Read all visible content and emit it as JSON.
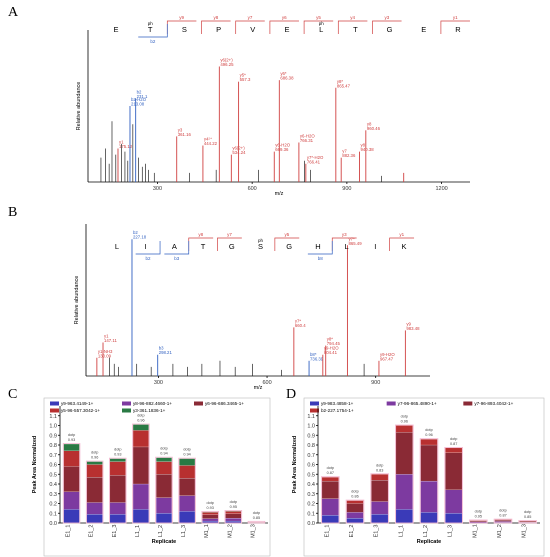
{
  "panels": [
    {
      "label": "A",
      "ylabel": "Relative abundance",
      "xlabel": "m/z"
    },
    {
      "label": "B",
      "ylabel": "Relative abundance",
      "xlabel": "m/z"
    },
    {
      "label": "C",
      "ylabel": "Peak Area Normalized",
      "xlabel": "Replicate"
    },
    {
      "label": "D",
      "ylabel": "Peak Area Normalized",
      "xlabel": "Replicate"
    }
  ],
  "chart_data": [
    {
      "panel": "A",
      "type": "bar",
      "xlabel": "m/z",
      "ylabel": "Relative abundance",
      "xlim": [
        80,
        1290
      ],
      "xticks": [
        300,
        600,
        900,
        1200
      ],
      "ylim": [
        0,
        100
      ],
      "sequence": [
        "E",
        "T",
        "S",
        "P",
        "V",
        "E",
        "L",
        "T",
        "G",
        "E",
        "R"
      ],
      "seq_mods": [
        {
          "index": 1,
          "text": "ph"
        },
        {
          "index": 6,
          "text": "ph"
        }
      ],
      "y_ions": [
        "y9",
        "y8",
        "y7",
        "y6",
        "y5",
        "y4",
        "y3",
        "y1"
      ],
      "b_ions": [
        "b2"
      ],
      "peaks": [
        {
          "x": 121,
          "y": 16,
          "c": "k"
        },
        {
          "x": 135,
          "y": 22,
          "c": "k"
        },
        {
          "x": 147,
          "y": 12,
          "c": "k"
        },
        {
          "x": 156,
          "y": 40,
          "c": "k"
        },
        {
          "x": 168,
          "y": 18,
          "c": "k"
        },
        {
          "x": 175,
          "y": 22,
          "c": "r",
          "label": "y1",
          "mz": "175.12"
        },
        {
          "x": 186,
          "y": 25,
          "c": "k"
        },
        {
          "x": 197,
          "y": 20,
          "c": "k"
        },
        {
          "x": 206,
          "y": 14,
          "c": "k"
        },
        {
          "x": 213,
          "y": 50,
          "c": "b",
          "label": "b2-H2O",
          "mz": "213.08"
        },
        {
          "x": 222,
          "y": 38,
          "c": "k"
        },
        {
          "x": 231,
          "y": 55,
          "c": "b",
          "label": "b2",
          "mz": "231.1"
        },
        {
          "x": 240,
          "y": 16,
          "c": "k"
        },
        {
          "x": 252,
          "y": 10,
          "c": "k"
        },
        {
          "x": 262,
          "y": 12,
          "c": "k"
        },
        {
          "x": 272,
          "y": 8,
          "c": "k"
        },
        {
          "x": 290,
          "y": 6,
          "c": "k"
        },
        {
          "x": 361,
          "y": 30,
          "c": "r",
          "label": "y3",
          "mz": "361.16"
        },
        {
          "x": 402,
          "y": 6,
          "c": "k"
        },
        {
          "x": 444,
          "y": 24,
          "c": "r",
          "label": "y4²⁺",
          "mz": "444.22"
        },
        {
          "x": 486,
          "y": 8,
          "c": "k"
        },
        {
          "x": 496,
          "y": 76,
          "c": "r",
          "label": "y6(2+)",
          "mz": "496.25"
        },
        {
          "x": 534,
          "y": 18,
          "c": "r",
          "label": "y6(2+)",
          "mz": "534.24"
        },
        {
          "x": 557,
          "y": 66,
          "c": "r",
          "label": "y5*",
          "mz": "557.3"
        },
        {
          "x": 620,
          "y": 8,
          "c": "k"
        },
        {
          "x": 670,
          "y": 20,
          "c": "r",
          "label": "y6-H2O",
          "mz": "669.36"
        },
        {
          "x": 686,
          "y": 67,
          "c": "r",
          "label": "y6*",
          "mz": "686.38"
        },
        {
          "x": 748,
          "y": 26,
          "c": "r",
          "label": "y6-H2O",
          "mz": "766.31"
        },
        {
          "x": 766,
          "y": 14,
          "c": "k"
        },
        {
          "x": 770,
          "y": 12,
          "c": "r",
          "label": "y7*-H2O",
          "mz": "766.41"
        },
        {
          "x": 785,
          "y": 8,
          "c": "k"
        },
        {
          "x": 865,
          "y": 62,
          "c": "r",
          "label": "y8*",
          "mz": "865.47"
        },
        {
          "x": 882,
          "y": 16,
          "c": "r",
          "label": "y7",
          "mz": "882.36"
        },
        {
          "x": 940,
          "y": 20,
          "c": "r",
          "label": "y8",
          "mz": "940.38"
        },
        {
          "x": 960,
          "y": 34,
          "c": "r",
          "label": "y8",
          "mz": "960.46"
        },
        {
          "x": 1010,
          "y": 4,
          "c": "k"
        },
        {
          "x": 1080,
          "y": 6,
          "c": "r"
        }
      ]
    },
    {
      "panel": "B",
      "type": "bar",
      "xlabel": "m/z",
      "ylabel": "Relative abundance",
      "xlim": [
        100,
        1050
      ],
      "xticks": [
        300,
        600,
        900
      ],
      "ylim": [
        0,
        100
      ],
      "sequence": [
        "L",
        "I",
        "A",
        "T",
        "G",
        "S",
        "G",
        "H",
        "L",
        "I",
        "K"
      ],
      "seq_mods": [
        {
          "index": 5,
          "text": "ph"
        }
      ],
      "y_ions": [
        "y8",
        "y7",
        "y5",
        "y3",
        "y1"
      ],
      "b_ions": [
        "b2",
        "b3",
        "b8"
      ],
      "peaks": [
        {
          "x": 130,
          "y": 12,
          "c": "r",
          "label": "y1-NH3",
          "mz": "130.09"
        },
        {
          "x": 147,
          "y": 22,
          "c": "r",
          "label": "y1",
          "mz": "147.11"
        },
        {
          "x": 165,
          "y": 12,
          "c": "k"
        },
        {
          "x": 178,
          "y": 8,
          "c": "k"
        },
        {
          "x": 190,
          "y": 6,
          "c": "k"
        },
        {
          "x": 227,
          "y": 90,
          "c": "b",
          "label": "b2",
          "mz": "227.18"
        },
        {
          "x": 240,
          "y": 8,
          "c": "k"
        },
        {
          "x": 280,
          "y": 6,
          "c": "k"
        },
        {
          "x": 298,
          "y": 14,
          "c": "b",
          "label": "b3",
          "mz": "298.21"
        },
        {
          "x": 340,
          "y": 8,
          "c": "k"
        },
        {
          "x": 380,
          "y": 6,
          "c": "k"
        },
        {
          "x": 420,
          "y": 8,
          "c": "k"
        },
        {
          "x": 470,
          "y": 10,
          "c": "k"
        },
        {
          "x": 512,
          "y": 6,
          "c": "k"
        },
        {
          "x": 560,
          "y": 8,
          "c": "k"
        },
        {
          "x": 640,
          "y": 4,
          "c": "k"
        },
        {
          "x": 674,
          "y": 32,
          "c": "r",
          "label": "y7*",
          "mz": "660.4"
        },
        {
          "x": 716,
          "y": 10,
          "c": "b",
          "label": "b8*",
          "mz": "736.39"
        },
        {
          "x": 754,
          "y": 14,
          "c": "r",
          "label": "y9-H2O",
          "mz": "804.41"
        },
        {
          "x": 762,
          "y": 20,
          "c": "r",
          "label": "y8*",
          "mz": "794.45"
        },
        {
          "x": 822,
          "y": 86,
          "c": "r",
          "label": "y7*",
          "mz": "865.49"
        },
        {
          "x": 868,
          "y": 8,
          "c": "k"
        },
        {
          "x": 909,
          "y": 10,
          "c": "r",
          "label": "y9-H2O",
          "mz": "967.47"
        },
        {
          "x": 982,
          "y": 30,
          "c": "r",
          "label": "y9",
          "mz": "983.48"
        }
      ]
    },
    {
      "panel": "C",
      "type": "bar",
      "xlabel": "Replicate",
      "ylabel": "Peak Area Normalized",
      "ylim": [
        0,
        1.2
      ],
      "yticks": [
        0,
        0.1,
        0.2,
        0.3,
        0.4,
        0.5,
        0.6,
        0.7,
        0.8,
        0.9,
        1.0,
        1.1
      ],
      "categories": [
        "E1_1",
        "E1_2",
        "E1_3",
        "L1_1",
        "L1_2",
        "L1_3",
        "M1_1",
        "M1_2",
        "M1_3"
      ],
      "series": [
        {
          "name": "y9-963.4149-1+",
          "color": "#3a3ab8",
          "values": [
            0.14,
            0.09,
            0.09,
            0.14,
            0.1,
            0.12,
            0.02,
            0.02,
            0.002
          ]
        },
        {
          "name": "y8-96-882.4660-1+",
          "color": "#7d3aa0",
          "values": [
            0.18,
            0.12,
            0.12,
            0.26,
            0.16,
            0.16,
            0.025,
            0.03,
            0.003
          ]
        },
        {
          "name": "y6-96-686.3465-1+",
          "color": "#8a2a35",
          "values": [
            0.26,
            0.26,
            0.28,
            0.38,
            0.24,
            0.18,
            0.04,
            0.045,
            0.004
          ]
        },
        {
          "name": "y5-96-557.3042-1+",
          "color": "#b83030",
          "values": [
            0.16,
            0.13,
            0.14,
            0.17,
            0.13,
            0.13,
            0.025,
            0.025,
            0.002
          ]
        },
        {
          "name": "y3-361.1836-1+",
          "color": "#2a7a44",
          "values": [
            0.07,
            0.03,
            0.03,
            0.06,
            0.04,
            0.07,
            0.004,
            0.004,
            0.001
          ]
        }
      ],
      "annotations": [
        "dotp 0.93",
        "dotp 0.96",
        "dotp 0.93",
        "dotp 0.96",
        "dotp 0.94",
        "dotp 0.94",
        "dotp 0.93",
        "dotp 0.95",
        "dotp 0.85"
      ]
    },
    {
      "panel": "D",
      "type": "bar",
      "xlabel": "Replicate",
      "ylabel": "Peak Area Normalized",
      "ylim": [
        0,
        1.2
      ],
      "yticks": [
        0,
        0.1,
        0.2,
        0.3,
        0.4,
        0.5,
        0.6,
        0.7,
        0.8,
        0.9,
        1.0,
        1.1
      ],
      "categories": [
        "E1_1",
        "E1_2",
        "E1_3",
        "L1_1",
        "L1_2",
        "L1_3",
        "M1_1",
        "M1_2",
        "M1_3"
      ],
      "series": [
        {
          "name": "y9-983.4858-1+",
          "color": "#3a3ab8",
          "values": [
            0.08,
            0.05,
            0.09,
            0.14,
            0.11,
            0.1,
            0.004,
            0.006,
            0.003
          ]
        },
        {
          "name": "y7-96-865.4890-1+",
          "color": "#7d3aa0",
          "values": [
            0.17,
            0.06,
            0.13,
            0.36,
            0.32,
            0.24,
            0.008,
            0.01,
            0.006
          ]
        },
        {
          "name": "y7-96-893.4042-1+",
          "color": "#8a2a35",
          "values": [
            0.18,
            0.09,
            0.22,
            0.43,
            0.37,
            0.38,
            0.01,
            0.014,
            0.008
          ]
        },
        {
          "name": "b2-227.1754-1+",
          "color": "#b83030",
          "values": [
            0.04,
            0.03,
            0.06,
            0.07,
            0.06,
            0.05,
            0.004,
            0.005,
            0.003
          ]
        }
      ],
      "annotations": [
        "dotp 0.87",
        "dotp 0.86",
        "dotp 0.83",
        "dotp 0.96",
        "dotp 0.96",
        "dotp 0.87",
        "dotp 0.95",
        "dotp 0.87",
        "dotp 0.85"
      ]
    }
  ]
}
